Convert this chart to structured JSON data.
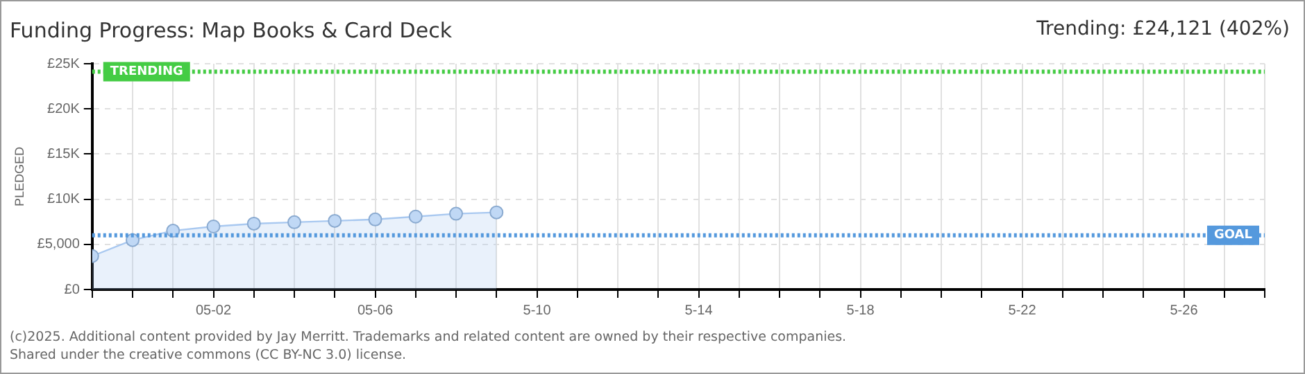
{
  "chart_data": {
    "type": "area",
    "title": "Funding Progress: Map Books & Card Deck",
    "ylabel": "PLEDGED",
    "annotations": [
      "Trending:  £24,121 (402%)",
      "(c)2025. Additional content provided by Jay Merritt. Trademarks and related content are owned by their respective companies.",
      "Shared under the creative commons (CC BY-NC 3.0) license."
    ],
    "x": [
      "--04-29",
      "--04-30",
      "--05-01",
      "--05-02",
      "--05-03",
      "--05-04",
      "--05-05",
      "--05-06",
      "--05-07",
      "--05-08",
      "--05-09"
    ],
    "series": [
      {
        "color": "#a8c8f0",
        "values": [
          3700,
          5470,
          6510,
          6980,
          7290,
          7450,
          7600,
          7760,
          8070,
          8390,
          8540
        ]
      }
    ],
    "xlim": [
      "--04-29",
      "--05-28"
    ],
    "xticks": [
      {
        "value": "--04-29",
        "label": null
      },
      {
        "value": "--04-30",
        "label": null
      },
      {
        "value": "--05-01",
        "label": null
      },
      {
        "value": "--05-02",
        "label": "05-02"
      },
      {
        "value": "--05-03",
        "label": null
      },
      {
        "value": "--05-04",
        "label": null
      },
      {
        "value": "--05-05",
        "label": null
      },
      {
        "value": "--05-06",
        "label": "05-06"
      },
      {
        "value": "--05-07",
        "label": null
      },
      {
        "value": "--05-08",
        "label": null
      },
      {
        "value": "--05-09",
        "label": null
      },
      {
        "value": "--05-10",
        "label": "5-10"
      },
      {
        "value": "--05-11",
        "label": null
      },
      {
        "value": "--05-12",
        "label": null
      },
      {
        "value": "--05-13",
        "label": null
      },
      {
        "value": "--05-14",
        "label": "5-14"
      },
      {
        "value": "--05-15",
        "label": null
      },
      {
        "value": "--05-16",
        "label": null
      },
      {
        "value": "--05-17",
        "label": null
      },
      {
        "value": "--05-18",
        "label": "5-18"
      },
      {
        "value": "--05-19",
        "label": null
      },
      {
        "value": "--05-20",
        "label": null
      },
      {
        "value": "--05-21",
        "label": null
      },
      {
        "value": "--05-22",
        "label": "5-22"
      },
      {
        "value": "--05-23",
        "label": null
      },
      {
        "value": "--05-24",
        "label": null
      },
      {
        "value": "--05-25",
        "label": null
      },
      {
        "value": "--05-26",
        "label": "5-26"
      },
      {
        "value": "--05-27",
        "label": null
      },
      {
        "value": "--05-28",
        "label": null
      }
    ],
    "ylim": [
      0,
      25000
    ],
    "yticks": [
      {
        "value": 0,
        "label": "£0"
      },
      {
        "value": 5000,
        "label": "£5,000"
      },
      {
        "value": 10000,
        "label": "£10K"
      },
      {
        "value": 15000,
        "label": "£15K"
      },
      {
        "value": 20000,
        "label": "£20K"
      },
      {
        "value": 25000,
        "label": "£25K"
      }
    ],
    "ref_lines": [
      {
        "axis": "y",
        "value": 24121,
        "label": "TRENDING",
        "color": "#44cc44",
        "line_style": "dotted"
      },
      {
        "axis": "y",
        "value": 6000,
        "label": "GOAL",
        "color": "#5599dd",
        "line_style": "dotted"
      }
    ],
    "grid": true,
    "legend": false,
    "marker": "circle",
    "line_style": "solid"
  }
}
